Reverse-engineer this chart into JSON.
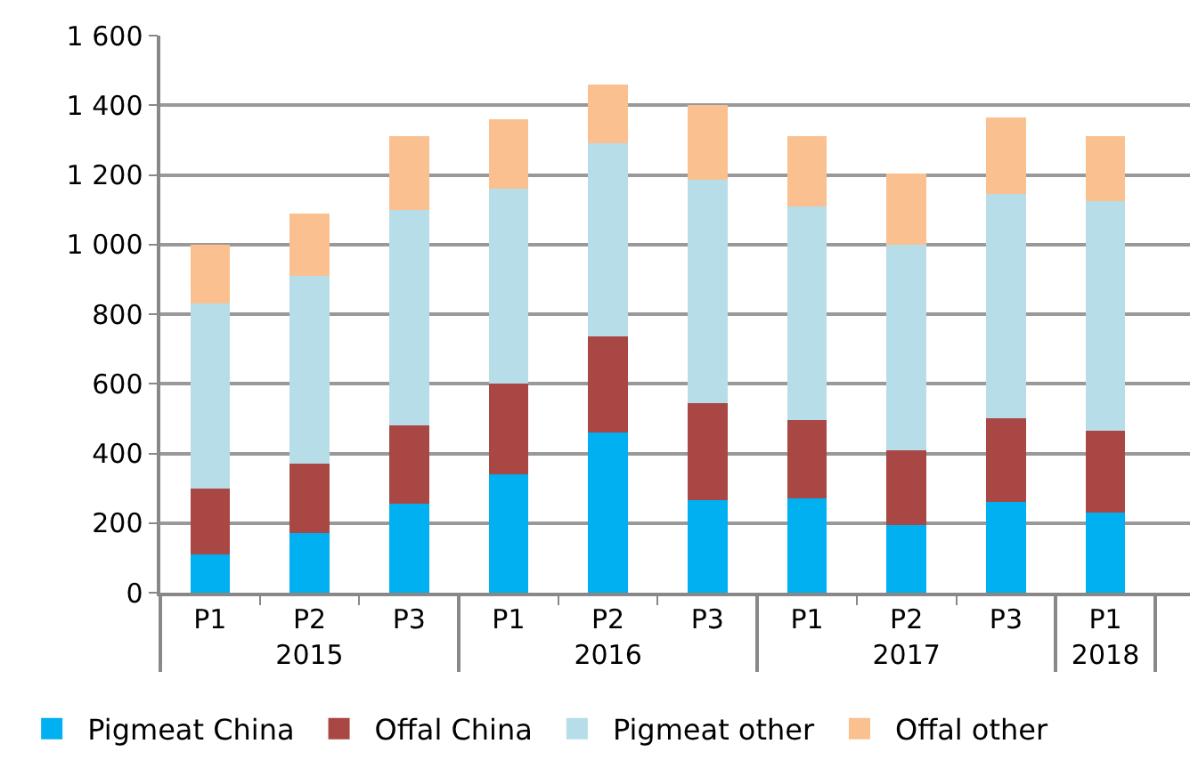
{
  "chart_data": {
    "type": "bar",
    "stacked": true,
    "categories": [
      "P1",
      "P2",
      "P3",
      "P1",
      "P2",
      "P3",
      "P1",
      "P2",
      "P3",
      "P1"
    ],
    "annotations": [
      "2015",
      "2016",
      "2017",
      "2018"
    ],
    "series": [
      {
        "name": "Pigmeat China",
        "color": "#00b0f0",
        "values": [
          110,
          170,
          255,
          340,
          460,
          265,
          270,
          195,
          260,
          230
        ]
      },
      {
        "name": "Offal China",
        "color": "#a94744",
        "values": [
          190,
          200,
          225,
          260,
          275,
          280,
          225,
          215,
          240,
          235
        ]
      },
      {
        "name": "Pigmeat other",
        "color": "#b7dde8",
        "values": [
          530,
          540,
          620,
          560,
          555,
          640,
          615,
          590,
          645,
          660
        ]
      },
      {
        "name": "Offal other",
        "color": "#fac090",
        "values": [
          170,
          180,
          210,
          200,
          170,
          215,
          200,
          205,
          220,
          185
        ]
      }
    ],
    "ylim": [
      0,
      1600
    ],
    "yticks": [
      0,
      200,
      400,
      600,
      800,
      {
        "value": 1000,
        "label": "1 000"
      },
      {
        "value": 1200,
        "label": "1 200"
      },
      {
        "value": 1400,
        "label": "1 400"
      },
      {
        "value": 1600,
        "label": "1 600"
      }
    ],
    "grid": "y",
    "legend": "bottom"
  }
}
